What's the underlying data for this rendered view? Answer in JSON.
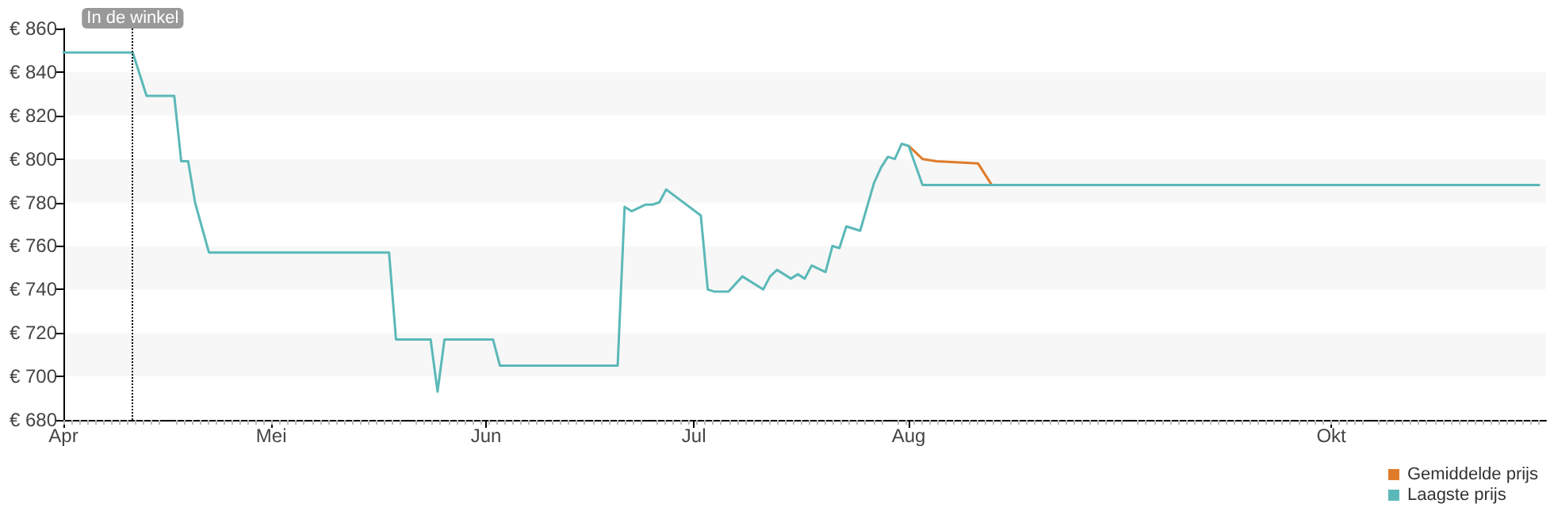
{
  "chart_data": {
    "type": "line",
    "x": [
      "--04-01",
      "--04-11",
      "--04-13",
      "--04-17",
      "--04-18",
      "--04-19",
      "--04-20",
      "--04-22",
      "--05-18",
      "--05-19",
      "--05-24",
      "--05-25",
      "--05-26",
      "--06-02",
      "--06-03",
      "--06-20",
      "--06-21",
      "--06-22",
      "--06-24",
      "--06-25",
      "--06-26",
      "--06-27",
      "--07-02",
      "--07-03",
      "--07-04",
      "--07-06",
      "--07-08",
      "--07-11",
      "--07-12",
      "--07-13",
      "--07-15",
      "--07-16",
      "--07-17",
      "--07-18",
      "--07-20",
      "--07-21",
      "--07-22",
      "--07-23",
      "--07-25",
      "--07-27",
      "--07-28",
      "--07-29",
      "--07-30",
      "--07-31",
      "--08-01",
      "--08-03",
      "--10-31"
    ],
    "series": [
      {
        "name": "Gemiddelde prijs",
        "color": "#e07b2a",
        "x": [
          "--08-01",
          "--08-03",
          "--08-05",
          "--08-11",
          "--08-13"
        ],
        "values": [
          806,
          800,
          799,
          798,
          788
        ]
      },
      {
        "name": "Laagste prijs",
        "color": "#5bb8b8",
        "values": [
          849,
          849,
          829,
          829,
          799,
          799,
          780,
          757,
          757,
          717,
          717,
          693,
          717,
          717,
          705,
          705,
          778,
          776,
          779,
          779,
          780,
          786,
          774,
          740,
          739,
          739,
          746,
          740,
          746,
          749,
          745,
          747,
          745,
          751,
          748,
          760,
          759,
          769,
          767,
          789,
          796,
          801,
          800,
          807,
          806,
          788,
          788
        ]
      }
    ],
    "xlim": [
      "--04-01",
      "--11-01"
    ],
    "xticks": [
      {
        "value": "--04-01",
        "label": "Apr"
      },
      {
        "value": "--05-01",
        "label": "Mei"
      },
      {
        "value": "--06-01",
        "label": "Jun"
      },
      {
        "value": "--07-01",
        "label": "Jul"
      },
      {
        "value": "--08-01",
        "label": "Aug"
      },
      {
        "value": "--10-01",
        "label": "Okt"
      }
    ],
    "ylim": [
      680,
      860
    ],
    "yticks": [
      {
        "value": 680,
        "label": "€ 680"
      },
      {
        "value": 700,
        "label": "€ 700"
      },
      {
        "value": 720,
        "label": "€ 720"
      },
      {
        "value": 740,
        "label": "€ 740"
      },
      {
        "value": 760,
        "label": "€ 760"
      },
      {
        "value": 780,
        "label": "€ 780"
      },
      {
        "value": 800,
        "label": "€ 800"
      },
      {
        "value": 820,
        "label": "€ 820"
      },
      {
        "value": 840,
        "label": "€ 840"
      },
      {
        "value": 860,
        "label": "€ 860"
      }
    ],
    "ref_lines": [
      {
        "axis": "x",
        "value": "--04-11",
        "label": "In de winkel",
        "color": "#000000",
        "line_style": "dotted"
      }
    ],
    "legend": "bottom right",
    "marker": "none",
    "line_style": "solid"
  }
}
